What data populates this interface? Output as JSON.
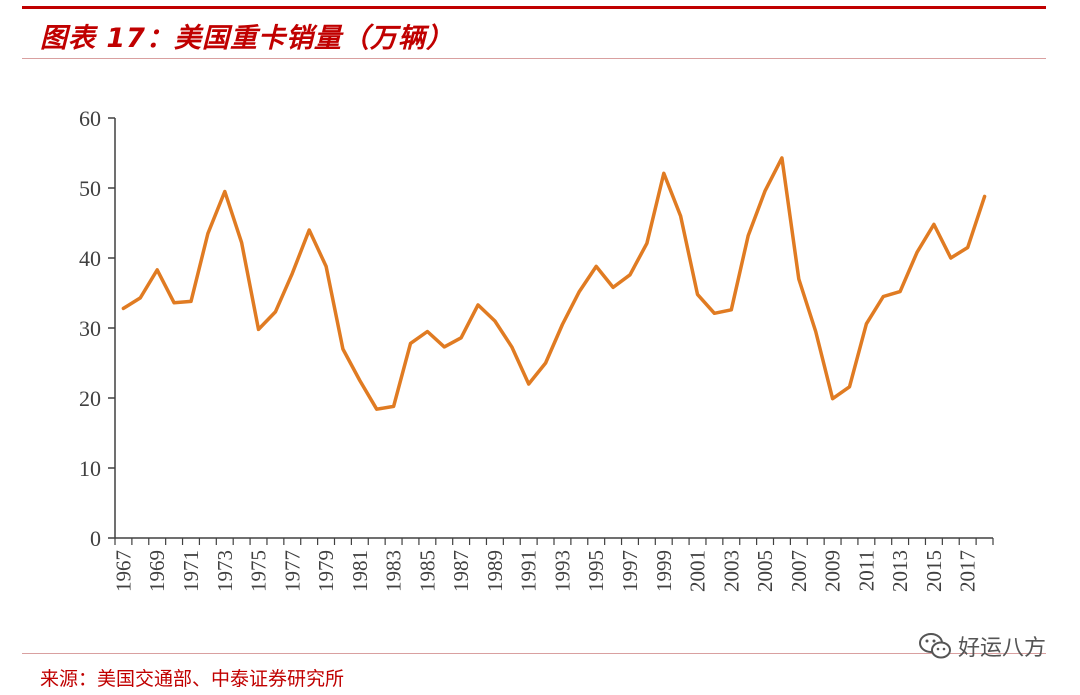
{
  "title": "图表 17：美国重卡销量（万辆）",
  "source": "来源：美国交通部、中泰证券研究所",
  "watermark": "好运八方",
  "colors": {
    "accent": "#c00000",
    "line": "#e07b22",
    "axis": "#404040"
  },
  "chart_data": {
    "type": "line",
    "title": "图表 17：美国重卡销量（万辆）",
    "xlabel": "",
    "ylabel": "",
    "ylim": [
      0,
      60
    ],
    "yticks": [
      0,
      10,
      20,
      30,
      40,
      50,
      60
    ],
    "grid": false,
    "legend": "none",
    "xtick_labels": [
      "1967",
      "1969",
      "1971",
      "1973",
      "1975",
      "1977",
      "1979",
      "1981",
      "1983",
      "1985",
      "1987",
      "1989",
      "1991",
      "1993",
      "1995",
      "1997",
      "1999",
      "2001",
      "2003",
      "2005",
      "2007",
      "2009",
      "2011",
      "2013",
      "2015",
      "2017"
    ],
    "x": [
      1967,
      1968,
      1969,
      1970,
      1971,
      1972,
      1973,
      1974,
      1975,
      1976,
      1977,
      1978,
      1979,
      1980,
      1981,
      1982,
      1983,
      1984,
      1985,
      1986,
      1987,
      1988,
      1989,
      1990,
      1991,
      1992,
      1993,
      1994,
      1995,
      1996,
      1997,
      1998,
      1999,
      2000,
      2001,
      2002,
      2003,
      2004,
      2005,
      2006,
      2007,
      2008,
      2009,
      2010,
      2011,
      2012,
      2013,
      2014,
      2015,
      2016,
      2017,
      2018
    ],
    "series": [
      {
        "values": [
          32.8,
          34.3,
          38.3,
          33.6,
          33.8,
          43.5,
          49.5,
          42.2,
          29.8,
          32.3,
          37.8,
          44.0,
          38.8,
          27.0,
          22.5,
          18.4,
          18.8,
          27.8,
          29.5,
          27.3,
          28.6,
          33.3,
          31.0,
          27.3,
          22.0,
          25.0,
          30.5,
          35.2,
          38.8,
          35.8,
          37.6,
          42.1,
          52.1,
          46.0,
          34.8,
          32.1,
          32.6,
          43.2,
          49.6,
          54.3,
          37.0,
          29.5,
          19.9,
          21.6,
          30.6,
          34.5,
          35.2,
          40.8,
          44.8,
          40.0,
          41.5,
          48.8
        ]
      }
    ]
  }
}
